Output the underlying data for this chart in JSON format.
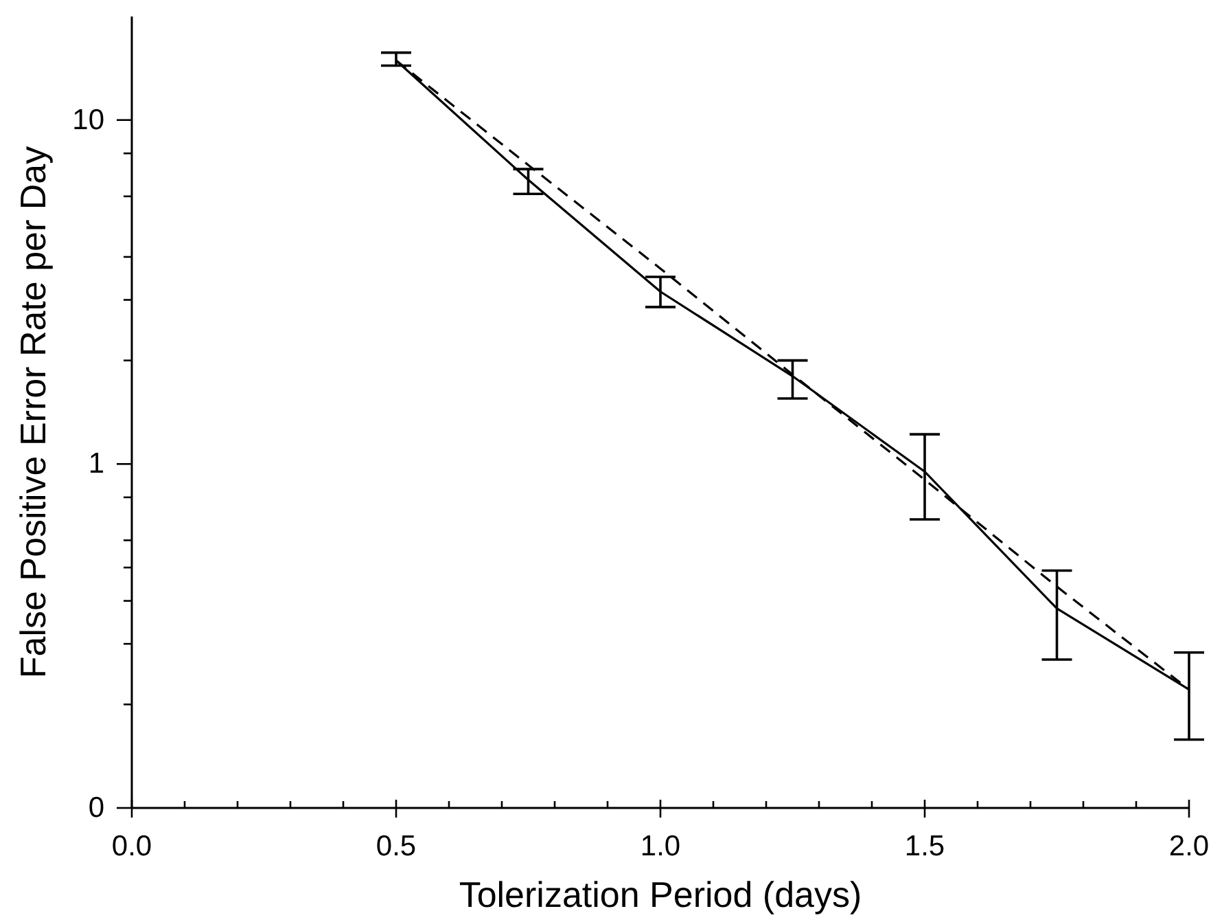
{
  "chart_data": {
    "type": "line",
    "xlabel": "Tolerization Period (days)",
    "ylabel": "False Positive Error Rate per Day",
    "log": "y",
    "xlim": [
      0,
      2
    ],
    "ylim": [
      0.1,
      20
    ],
    "xticks": [
      {
        "value": 0,
        "label": "0.0"
      },
      {
        "value": 0.1,
        "label": null
      },
      {
        "value": 0.2,
        "label": null
      },
      {
        "value": 0.3,
        "label": null
      },
      {
        "value": 0.4,
        "label": null
      },
      {
        "value": 0.5,
        "label": "0.5"
      },
      {
        "value": 0.6,
        "label": null
      },
      {
        "value": 0.7,
        "label": null
      },
      {
        "value": 0.8,
        "label": null
      },
      {
        "value": 0.9,
        "label": null
      },
      {
        "value": 1,
        "label": "1.0"
      },
      {
        "value": 1.1,
        "label": null
      },
      {
        "value": 1.2,
        "label": null
      },
      {
        "value": 1.3,
        "label": null
      },
      {
        "value": 1.4,
        "label": null
      },
      {
        "value": 1.5,
        "label": "1.5"
      },
      {
        "value": 1.6,
        "label": null
      },
      {
        "value": 1.7,
        "label": null
      },
      {
        "value": 1.8,
        "label": null
      },
      {
        "value": 1.9,
        "label": null
      },
      {
        "value": 2,
        "label": "2.0"
      }
    ],
    "yticks": [
      {
        "value": 0.1,
        "label": "0"
      },
      {
        "value": 0.2,
        "label": null
      },
      {
        "value": 0.3,
        "label": null
      },
      {
        "value": 0.4,
        "label": null
      },
      {
        "value": 0.5,
        "label": null
      },
      {
        "value": 0.6,
        "label": null
      },
      {
        "value": 0.8,
        "label": null
      },
      1,
      {
        "value": 2,
        "label": null
      },
      {
        "value": 3,
        "label": null
      },
      {
        "value": 4,
        "label": null
      },
      {
        "value": 6,
        "label": null
      },
      {
        "value": 8,
        "label": null
      },
      10
    ],
    "series": [
      {
        "color": "#000000",
        "line_style": "solid",
        "x": [
          0.5,
          0.75,
          1,
          1.25,
          1.5,
          1.75,
          2
        ],
        "values": [
          14.9,
          6.7,
          3.17,
          1.8,
          0.95,
          0.38,
          0.221
        ],
        "errors": [
          [
            14.4,
            15.7
          ],
          [
            6.1,
            7.2
          ],
          [
            2.86,
            3.5
          ],
          [
            1.55,
            2.0
          ],
          [
            0.69,
            1.22
          ],
          [
            0.27,
            0.49
          ],
          [
            0.158,
            0.283
          ]
        ]
      },
      {
        "type": "line",
        "color": "#000000",
        "line_style": "dashed",
        "x": [
          0.5,
          0.75,
          1,
          1.25,
          1.5,
          1.75,
          2
        ],
        "values": [
          14.9,
          7.4,
          3.7,
          1.82,
          0.9,
          0.44,
          0.221
        ]
      }
    ]
  }
}
